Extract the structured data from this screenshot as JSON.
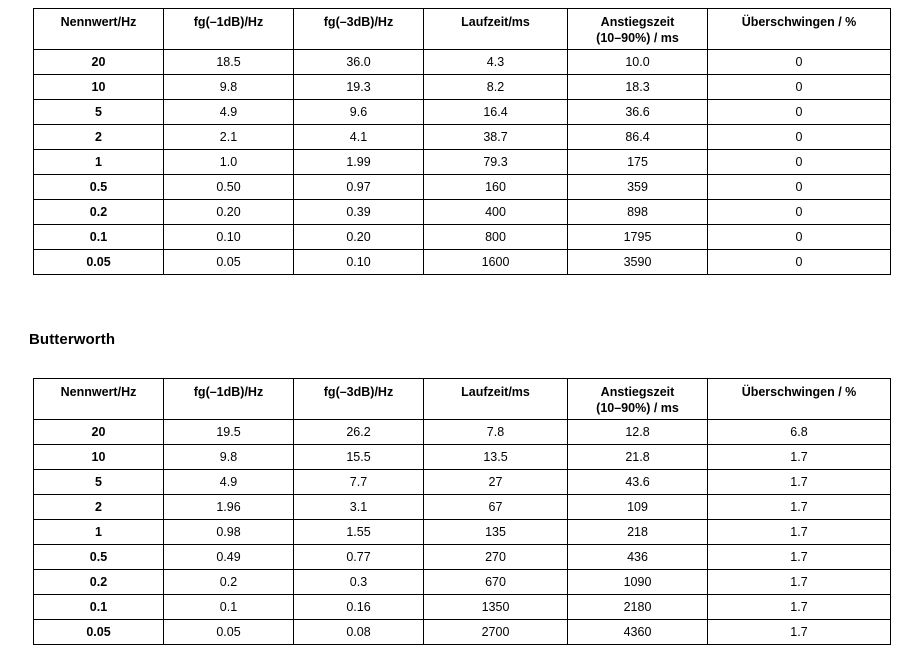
{
  "section_heading": "Butterworth",
  "colors": {
    "background": "#ffffff",
    "text": "#000000",
    "border": "#000000"
  },
  "table1": {
    "headers": [
      "Nennwert/Hz",
      "fg(–1dB)/Hz",
      "fg(–3dB)/Hz",
      "Laufzeit/ms",
      "Anstiegszeit\n(10–90%) / ms",
      "Überschwingen / %"
    ],
    "rows": [
      [
        "20",
        "18.5",
        "36.0",
        "4.3",
        "10.0",
        "0"
      ],
      [
        "10",
        "9.8",
        "19.3",
        "8.2",
        "18.3",
        "0"
      ],
      [
        "5",
        "4.9",
        "9.6",
        "16.4",
        "36.6",
        "0"
      ],
      [
        "2",
        "2.1",
        "4.1",
        "38.7",
        "86.4",
        "0"
      ],
      [
        "1",
        "1.0",
        "1.99",
        "79.3",
        "175",
        "0"
      ],
      [
        "0.5",
        "0.50",
        "0.97",
        "160",
        "359",
        "0"
      ],
      [
        "0.2",
        "0.20",
        "0.39",
        "400",
        "898",
        "0"
      ],
      [
        "0.1",
        "0.10",
        "0.20",
        "800",
        "1795",
        "0"
      ],
      [
        "0.05",
        "0.05",
        "0.10",
        "1600",
        "3590",
        "0"
      ]
    ]
  },
  "table2": {
    "headers": [
      "Nennwert/Hz",
      "fg(–1dB)/Hz",
      "fg(–3dB)/Hz",
      "Laufzeit/ms",
      "Anstiegszeit\n(10–90%) / ms",
      "Überschwingen / %"
    ],
    "rows": [
      [
        "20",
        "19.5",
        "26.2",
        "7.8",
        "12.8",
        "6.8"
      ],
      [
        "10",
        "9.8",
        "15.5",
        "13.5",
        "21.8",
        "1.7"
      ],
      [
        "5",
        "4.9",
        "7.7",
        "27",
        "43.6",
        "1.7"
      ],
      [
        "2",
        "1.96",
        "3.1",
        "67",
        "109",
        "1.7"
      ],
      [
        "1",
        "0.98",
        "1.55",
        "135",
        "218",
        "1.7"
      ],
      [
        "0.5",
        "0.49",
        "0.77",
        "270",
        "436",
        "1.7"
      ],
      [
        "0.2",
        "0.2",
        "0.3",
        "670",
        "1090",
        "1.7"
      ],
      [
        "0.1",
        "0.1",
        "0.16",
        "1350",
        "2180",
        "1.7"
      ],
      [
        "0.05",
        "0.05",
        "0.08",
        "2700",
        "4360",
        "1.7"
      ]
    ]
  }
}
